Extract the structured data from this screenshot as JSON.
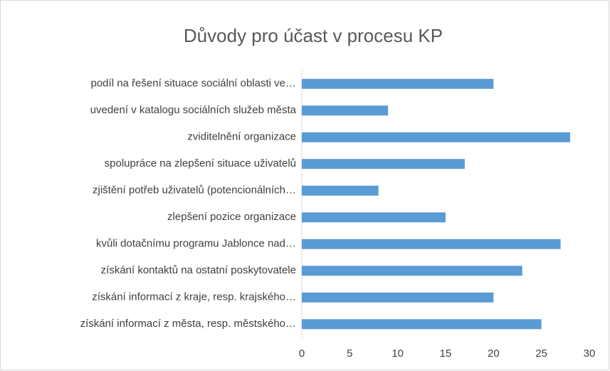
{
  "chart_data": {
    "type": "bar",
    "orientation": "horizontal",
    "title": "Důvody pro účast v procesu KP",
    "categories": [
      "podíl na řešení situace sociální oblasti ve…",
      "uvedení v katalogu sociálních služeb města",
      "zviditelnění organizace",
      "spolupráce na zlepšení situace uživatelů",
      "zjištění potřeb uživatelů (potencionálních…",
      "zlepšení pozice organizace",
      "kvůli dotačnímu programu Jablonce nad…",
      "získání kontaktů na ostatní poskytovatele",
      "získání informací z kraje, resp. krajského…",
      "získání informací z města, resp. městského…"
    ],
    "values": [
      20,
      9,
      28,
      17,
      8,
      15,
      27,
      23,
      20,
      25
    ],
    "color": "#5b9bd5",
    "xlim": [
      0,
      30
    ],
    "xticks": [
      0,
      5,
      10,
      15,
      20,
      25,
      30
    ],
    "grid": false
  }
}
